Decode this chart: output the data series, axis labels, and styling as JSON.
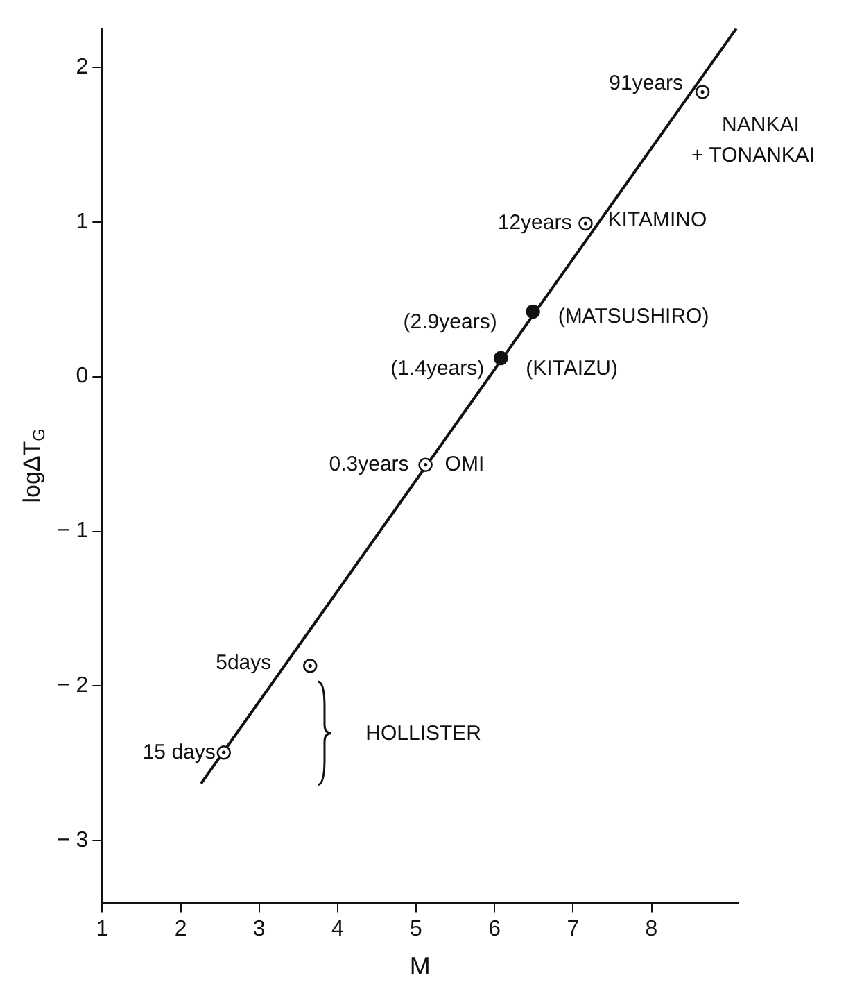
{
  "chart_data": {
    "type": "scatter",
    "xlabel": "M",
    "ylabel": "logΔT$_{G}$",
    "xlim": [
      1,
      9.1
    ],
    "ylim": [
      -3.4,
      2.25
    ],
    "xticks": [
      1,
      2,
      3,
      4,
      5,
      6,
      7,
      8
    ],
    "yticks": [
      {
        "value": -3,
        "label": "− 3"
      },
      {
        "value": -2,
        "label": "− 2"
      },
      {
        "value": -1,
        "label": "− 1"
      },
      0,
      1,
      2
    ],
    "grid": false,
    "legend": false,
    "marker": "circle",
    "series": [
      {
        "type": "scatter",
        "color": "#111111",
        "x": [
          8.65,
          7.16,
          5.12,
          3.65,
          2.55
        ],
        "values": [
          1.84,
          0.99,
          -0.57,
          -1.87,
          -2.43
        ]
      },
      {
        "type": "scatter",
        "color": "#111111",
        "x": [
          6.49,
          6.08
        ],
        "values": [
          0.42,
          0.12
        ]
      },
      {
        "type": "line",
        "color": "#111111",
        "marker": "none",
        "x": [
          2.26,
          9.08
        ],
        "values": [
          -2.63,
          2.25
        ]
      }
    ],
    "annotations": [
      {
        "text": "91years",
        "x": 8.65,
        "y": 1.84
      },
      {
        "text": "NANKAI",
        "x": 8.65,
        "y": 1.84
      },
      {
        "text": "+ TONANKAI",
        "x": 8.65,
        "y": 1.84
      },
      {
        "text": "12years",
        "x": 7.16,
        "y": 0.99
      },
      {
        "text": "KITAMINO",
        "x": 7.16,
        "y": 0.99
      },
      {
        "text": "(2.9years)",
        "x": 6.49,
        "y": 0.42
      },
      {
        "text": "(MATSUSHIRO)",
        "x": 6.49,
        "y": 0.42
      },
      {
        "text": "(1.4years)",
        "x": 6.08,
        "y": 0.12
      },
      {
        "text": "(KITAIZU)",
        "x": 6.08,
        "y": 0.12
      },
      {
        "text": "0.3years",
        "x": 5.12,
        "y": -0.57
      },
      {
        "text": "OMI",
        "x": 5.12,
        "y": -0.57
      },
      {
        "text": "5days",
        "x": 3.65,
        "y": -1.87
      },
      {
        "text": "15 days",
        "x": 2.55,
        "y": -2.43
      },
      "HOLLISTER"
    ]
  }
}
